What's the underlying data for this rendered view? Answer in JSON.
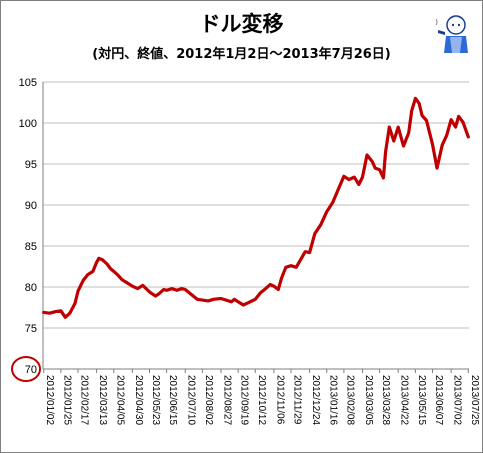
{
  "colors": {
    "line": "#c00000",
    "grid": "#bfbfbf",
    "axis": "#7f7f7f",
    "highlight_circle": "#c00000"
  },
  "icons": {
    "mascot": "man-with-pipe-illustration"
  },
  "chart_data": {
    "type": "line",
    "title": "ドル変移",
    "subtitle": "(対円、終値、2012年1月2日～2013年7月26日)",
    "xlabel": "",
    "ylabel": "",
    "ylim": [
      70,
      105
    ],
    "yticks": [
      70,
      75,
      80,
      85,
      90,
      95,
      100,
      105
    ],
    "highlighted_ytick": 70,
    "grid": true,
    "x_tick_labels": [
      "2012/01/02",
      "2012/01/25",
      "2012/02/17",
      "2012/03/13",
      "2012/04/05",
      "2012/04/30",
      "2012/05/23",
      "2012/06/15",
      "2012/07/10",
      "2012/08/02",
      "2012/08/27",
      "2012/09/19",
      "2012/10/12",
      "2012/11/06",
      "2012/11/29",
      "2012/12/24",
      "2013/01/16",
      "2013/02/08",
      "2013/03/05",
      "2013/03/28",
      "2013/04/22",
      "2013/05/15",
      "2013/06/07",
      "2013/07/02",
      "2013/07/25"
    ],
    "series": [
      {
        "x": [
          "2012/01/02",
          "2012/01/10",
          "2012/01/18",
          "2012/01/25",
          "2012/01/31",
          "2012/02/06",
          "2012/02/13",
          "2012/02/17",
          "2012/02/24",
          "2012/03/01",
          "2012/03/08",
          "2012/03/13",
          "2012/03/16",
          "2012/03/21",
          "2012/03/27",
          "2012/04/01",
          "2012/04/05",
          "2012/04/10",
          "2012/04/16",
          "2012/04/23",
          "2012/04/30",
          "2012/05/07",
          "2012/05/14",
          "2012/05/23",
          "2012/05/31",
          "2012/06/05",
          "2012/06/11",
          "2012/06/15",
          "2012/06/22",
          "2012/06/29",
          "2012/07/05",
          "2012/07/10",
          "2012/07/18",
          "2012/07/26",
          "2012/08/02",
          "2012/08/10",
          "2012/08/17",
          "2012/08/27",
          "2012/09/03",
          "2012/09/10",
          "2012/09/14",
          "2012/09/19",
          "2012/09/26",
          "2012/10/03",
          "2012/10/12",
          "2012/10/19",
          "2012/10/26",
          "2012/11/01",
          "2012/11/06",
          "2012/11/12",
          "2012/11/16",
          "2012/11/22",
          "2012/11/29",
          "2012/12/06",
          "2012/12/13",
          "2012/12/18",
          "2012/12/24",
          "2012/12/31",
          "2013/01/08",
          "2013/01/16",
          "2013/01/24",
          "2013/01/31",
          "2013/02/08",
          "2013/02/15",
          "2013/02/22",
          "2013/02/28",
          "2013/03/05",
          "2013/03/11",
          "2013/03/18",
          "2013/03/22",
          "2013/03/28",
          "2013/04/02",
          "2013/04/05",
          "2013/04/10",
          "2013/04/16",
          "2013/04/22",
          "2013/04/29",
          "2013/05/06",
          "2013/05/10",
          "2013/05/15",
          "2013/05/20",
          "2013/05/24",
          "2013/05/30",
          "2013/06/07",
          "2013/06/13",
          "2013/06/20",
          "2013/06/26",
          "2013/07/02",
          "2013/07/08",
          "2013/07/12",
          "2013/07/18",
          "2013/07/25"
        ],
        "values": [
          76.9,
          76.8,
          77.0,
          77.1,
          76.3,
          76.8,
          78.0,
          79.5,
          80.8,
          81.5,
          81.9,
          83.0,
          83.5,
          83.3,
          82.8,
          82.2,
          81.9,
          81.5,
          80.9,
          80.5,
          80.1,
          79.8,
          80.2,
          79.4,
          78.9,
          79.2,
          79.7,
          79.6,
          79.8,
          79.6,
          79.8,
          79.7,
          79.1,
          78.5,
          78.4,
          78.3,
          78.5,
          78.6,
          78.4,
          78.2,
          78.5,
          78.2,
          77.8,
          78.1,
          78.5,
          79.3,
          79.8,
          80.3,
          80.1,
          79.7,
          81.0,
          82.4,
          82.6,
          82.4,
          83.5,
          84.3,
          84.2,
          86.5,
          87.6,
          89.2,
          90.3,
          91.8,
          93.5,
          93.1,
          93.4,
          92.5,
          93.4,
          96.1,
          95.3,
          94.5,
          94.3,
          93.3,
          96.5,
          99.5,
          97.8,
          99.5,
          97.2,
          98.8,
          101.5,
          103.0,
          102.4,
          100.9,
          100.3,
          97.4,
          94.5,
          97.3,
          98.5,
          100.4,
          99.5,
          100.8,
          100.1,
          98.3
        ]
      }
    ]
  }
}
